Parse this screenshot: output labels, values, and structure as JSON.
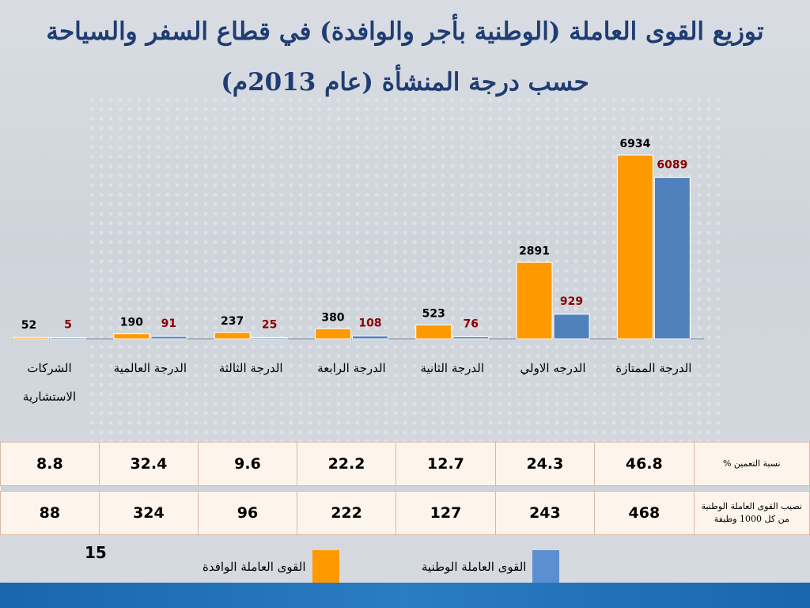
{
  "title": {
    "line1": "توزيع القوى العاملة (الوطنية بأجر والوافدة) في قطاع السفر والسياحة",
    "line2": "حسب درجة المنشأة  (عام 2013م)"
  },
  "chart_data": {
    "type": "bar",
    "categories": [
      "الدرجة الممتازة",
      "الدرجه الاولي",
      "الدرجة الثانية",
      "الدرجة الرابعة",
      "الدرجة الثالثة",
      "الدرجة العالمية",
      "الشركات الاستشارية"
    ],
    "category_lines": [
      [
        "الدرجة الممتازة"
      ],
      [
        "الدرجه الاولي"
      ],
      [
        "الدرجة الثانية"
      ],
      [
        "الدرجة الرابعة"
      ],
      [
        "الدرجة الثالثة"
      ],
      [
        "الدرجة العالمية"
      ],
      [
        "الشركات",
        "الاستشارية"
      ]
    ],
    "series": [
      {
        "name": "القوى العاملة الوافدة",
        "color": "#ff9900",
        "label_color": "#000000",
        "values": [
          6934,
          2891,
          523,
          380,
          237,
          190,
          52
        ]
      },
      {
        "name": "القوى العاملة الوطنية",
        "color": "#4f81bd",
        "label_color": "#8b0000",
        "values": [
          6089,
          929,
          76,
          108,
          25,
          91,
          5
        ]
      }
    ],
    "ylim": [
      0,
      7000
    ],
    "direction": "rtl",
    "legend": "bottom",
    "grid": false
  },
  "table": {
    "rows": [
      {
        "label": [
          "نسبة التعمين %"
        ],
        "values": [
          "46.8",
          "24.3",
          "12.7",
          "22.2",
          "9.6",
          "32.4",
          "8.8"
        ]
      },
      {
        "label": [
          "نصيب القوى العاملة الوطنية",
          "من كل 1000 وظيفة"
        ],
        "values": [
          "468",
          "243",
          "127",
          "222",
          "96",
          "324",
          "88"
        ]
      }
    ]
  },
  "page_number": "15",
  "legend": {
    "expat": "القوى العاملة الوافدة",
    "national": "القوى العاملة الوطنية"
  },
  "colors": {
    "expat": "#ff9900",
    "national": "#4f81bd",
    "title": "#1f3d73"
  }
}
